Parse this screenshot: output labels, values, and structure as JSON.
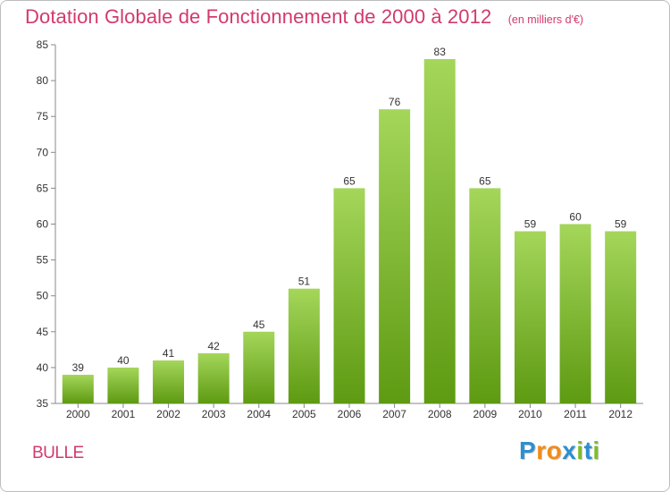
{
  "chart_data": {
    "type": "bar",
    "title": "Dotation Globale de Fonctionnement de 2000 à 2012",
    "subtitle": "(en milliers d'€)",
    "categories": [
      "2000",
      "2001",
      "2002",
      "2003",
      "2004",
      "2005",
      "2006",
      "2007",
      "2008",
      "2009",
      "2010",
      "2011",
      "2012"
    ],
    "values": [
      39,
      40,
      41,
      42,
      45,
      51,
      65,
      76,
      83,
      65,
      59,
      60,
      59
    ],
    "ylim": [
      35,
      85
    ],
    "yticks": [
      35,
      40,
      45,
      50,
      55,
      60,
      65,
      70,
      75,
      80,
      85
    ],
    "grid": false,
    "colors": {
      "bar_top": "#a4d65a",
      "bar_bottom": "#5e9a12",
      "title": "#d23a6e",
      "axis": "#888888"
    }
  },
  "footer": {
    "commune": "BULLE",
    "logo_letters": [
      "P",
      "r",
      "o",
      "x",
      "i",
      "t",
      "i"
    ],
    "logo_colors": [
      "#2e8fd0",
      "#f08c1a",
      "#f08c1a",
      "#2e8fd0",
      "#7cbd2e",
      "#2e8fd0",
      "#7cbd2e"
    ]
  }
}
